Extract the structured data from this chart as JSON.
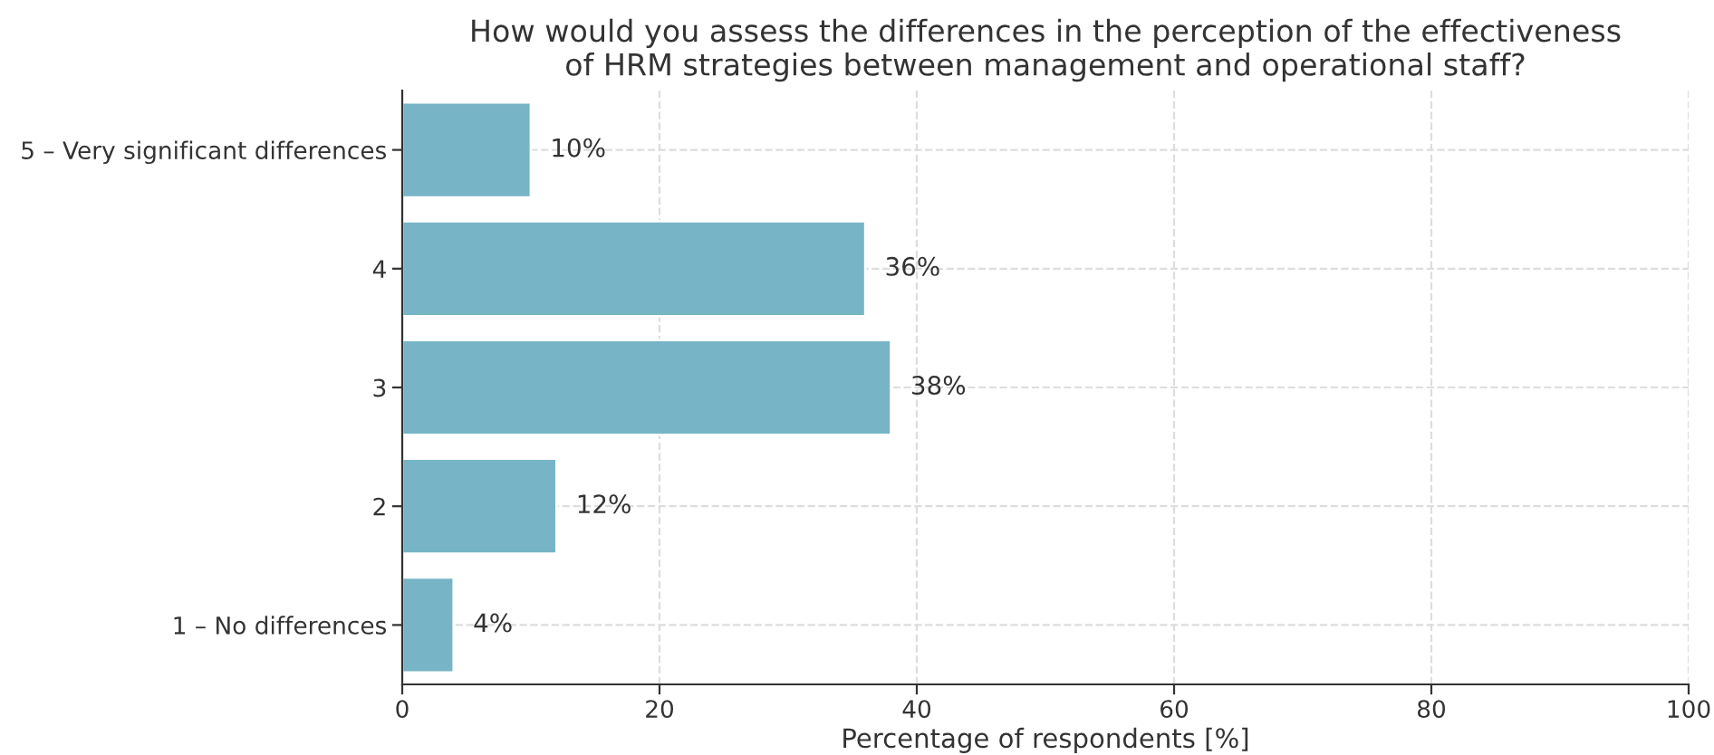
{
  "chart_data": {
    "type": "bar",
    "orientation": "horizontal",
    "title": "How would you assess the differences in the perception of the effectiveness\nof HRM strategies between management and operational staff?",
    "xlabel": "Percentage of respondents [%]",
    "categories": [
      "5 – Very significant differences",
      "4",
      "3",
      "2",
      "1 – No differences"
    ],
    "values": [
      10,
      36,
      38,
      12,
      4
    ],
    "value_labels": [
      "10%",
      "36%",
      "38%",
      "12%",
      "4%"
    ],
    "color": "#76b4c6",
    "xlim": [
      0,
      100
    ],
    "xticks": [
      0,
      20,
      40,
      60,
      80,
      100
    ],
    "grid": true
  }
}
